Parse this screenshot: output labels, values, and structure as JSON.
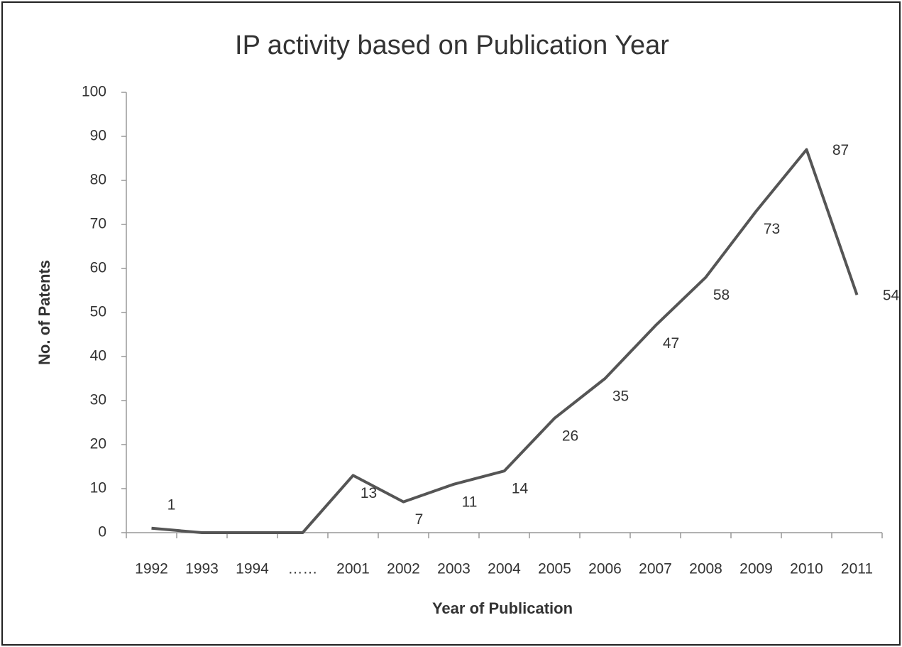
{
  "chart_data": {
    "type": "line",
    "title": "IP activity based on Publication Year",
    "x_label": "Year of Publication",
    "y_label": "No. of Patents",
    "categories": [
      "1992",
      "1993",
      "1994",
      "……",
      "2001",
      "2002",
      "2003",
      "2004",
      "2005",
      "2006",
      "2007",
      "2008",
      "2009",
      "2010",
      "2011"
    ],
    "values": [
      1,
      0,
      0,
      0,
      13,
      7,
      11,
      14,
      26,
      35,
      47,
      58,
      73,
      87,
      54
    ],
    "value_labels": [
      "1",
      null,
      null,
      null,
      "13",
      "7",
      "11",
      "14",
      "26",
      "35",
      "47",
      "58",
      "73",
      "87",
      "54"
    ],
    "color": "#555555",
    "ylim": [
      0,
      100
    ],
    "yticks": [
      0,
      10,
      20,
      30,
      40,
      50,
      60,
      70,
      80,
      90,
      100
    ],
    "grid": false
  }
}
